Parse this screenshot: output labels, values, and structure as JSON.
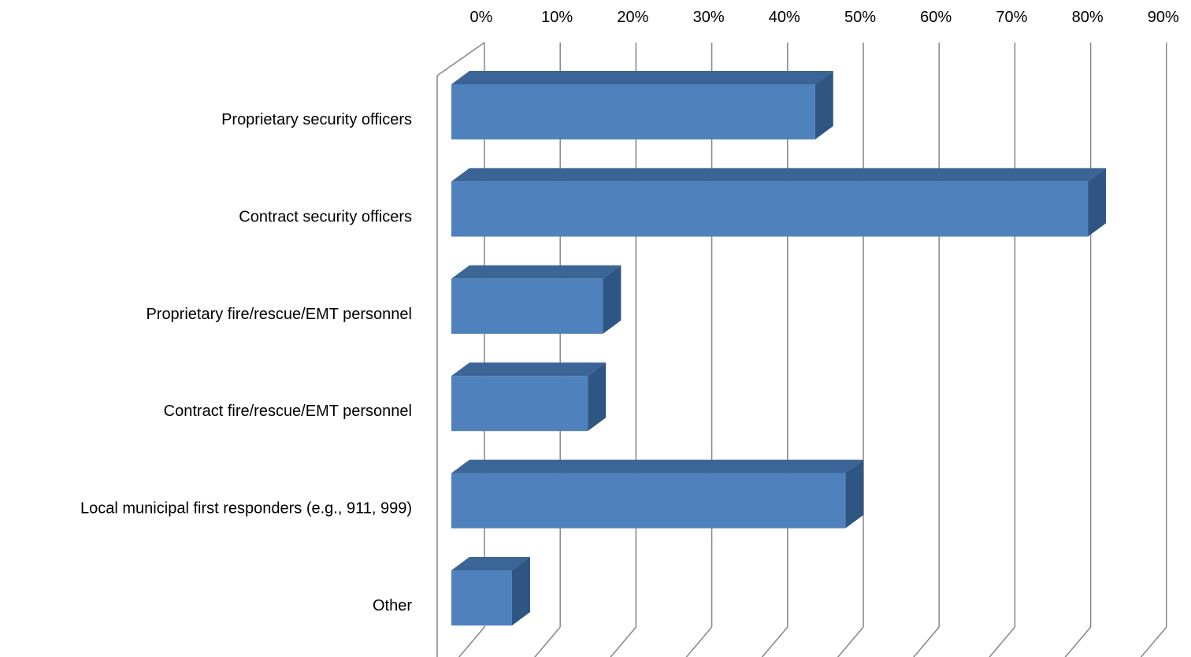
{
  "chart_data": {
    "type": "bar",
    "orientation": "horizontal",
    "style": "3d-clustered-bar",
    "categories": [
      "Proprietary security officers",
      "Contract security officers",
      "Proprietary fire/rescue/EMT personnel",
      "Contract fire/rescue/EMT personnel",
      "Local municipal first responders (e.g., 911, 999)",
      "Other"
    ],
    "values": [
      0.48,
      0.84,
      0.2,
      0.18,
      0.52,
      0.08
    ],
    "xlim": [
      0,
      0.9
    ],
    "ticks": [
      0,
      0.1,
      0.2,
      0.3,
      0.4,
      0.5,
      0.6,
      0.7,
      0.8,
      0.9
    ],
    "tick_labels": [
      "0%",
      "10%",
      "20%",
      "30%",
      "40%",
      "50%",
      "60%",
      "70%",
      "80%",
      "90%"
    ],
    "axis_position": "top",
    "grid": true,
    "legend": "none",
    "title": "",
    "xlabel": "",
    "ylabel": "",
    "colors": {
      "bar_front": "#4F81BD",
      "bar_top": "#3B6597",
      "bar_side": "#2F5582",
      "grid": "#868686"
    }
  }
}
